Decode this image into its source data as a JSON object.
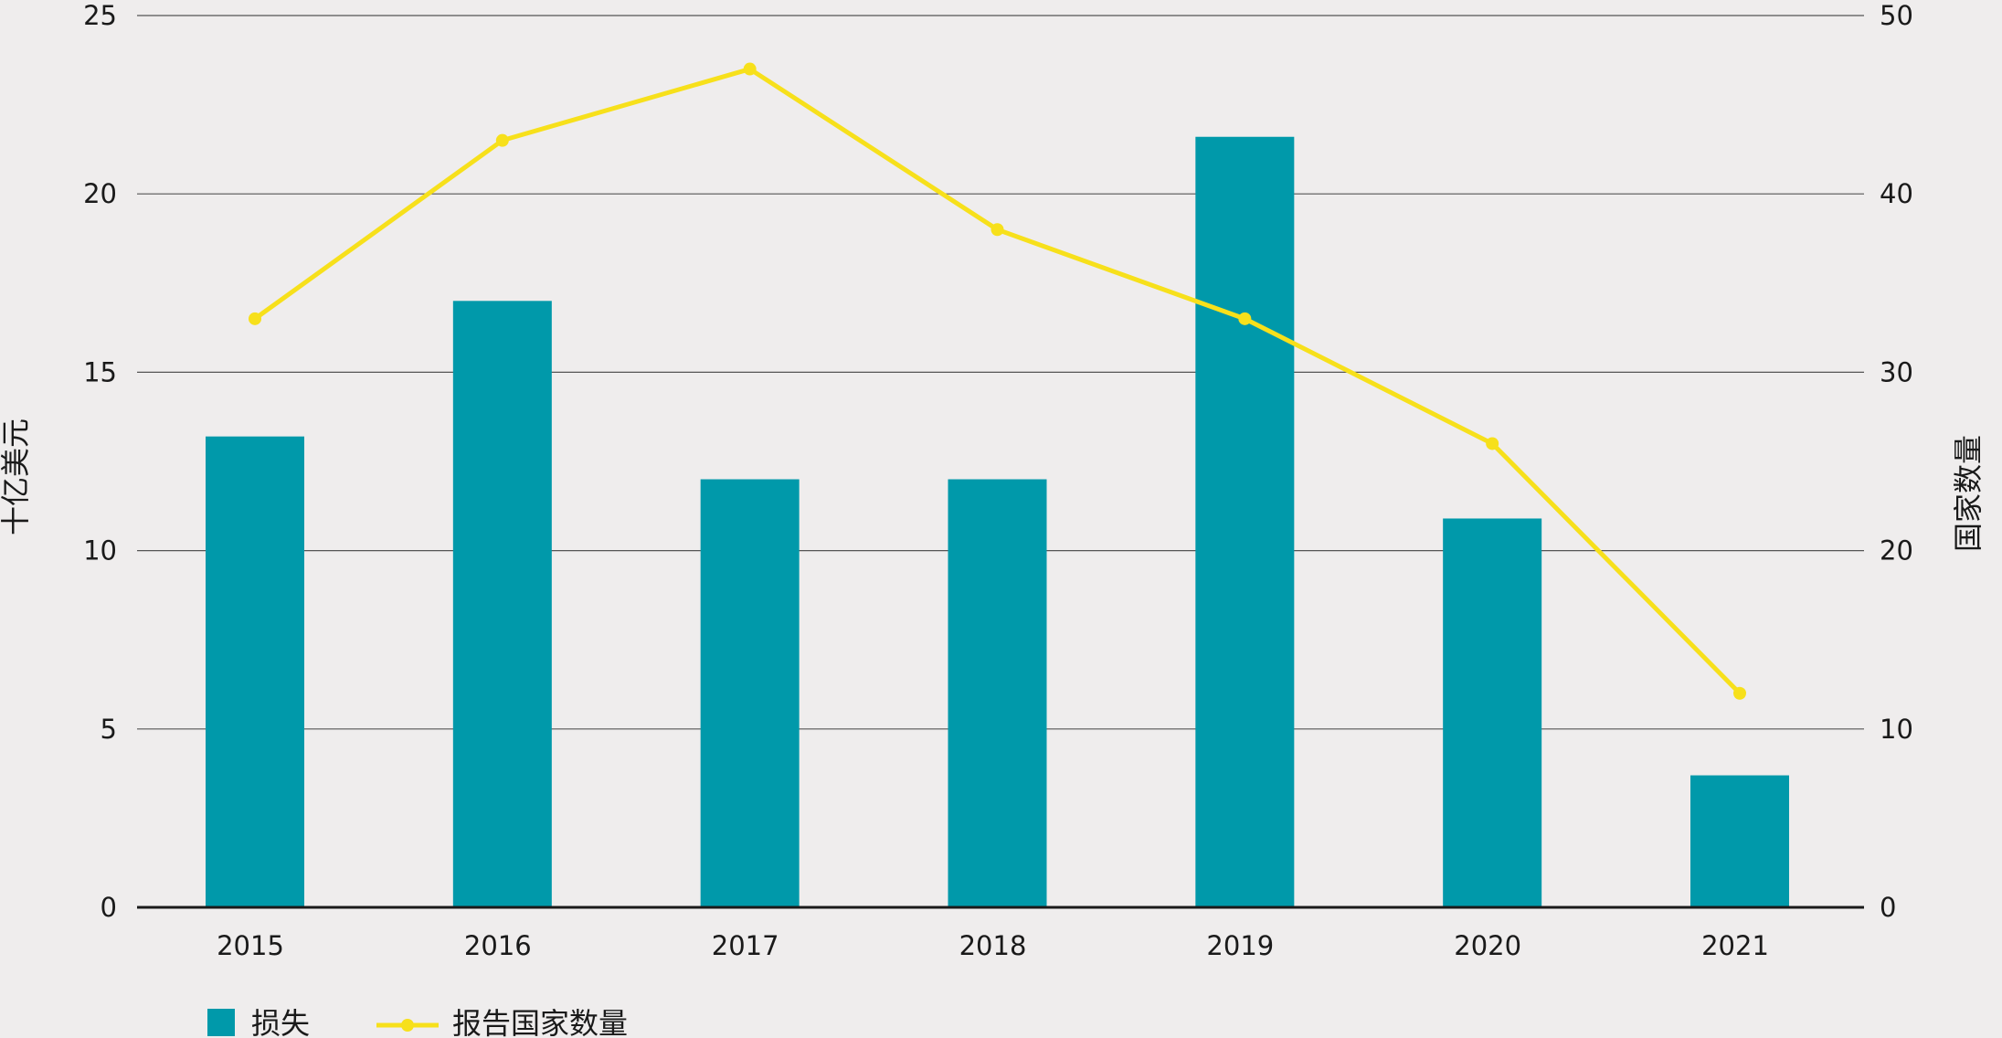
{
  "chart_data": {
    "type": "bar",
    "categories": [
      "2015",
      "2016",
      "2017",
      "2018",
      "2019",
      "2020",
      "2021"
    ],
    "series": [
      {
        "name": "损失",
        "type": "bar",
        "axis": "left",
        "color": "#0099aa",
        "values": [
          13.2,
          17.0,
          12.0,
          12.0,
          21.6,
          10.9,
          3.7
        ]
      },
      {
        "name": "报告国家数量",
        "type": "line",
        "axis": "right",
        "color": "#f7e01b",
        "values": [
          33,
          43,
          47,
          38,
          33,
          26,
          12
        ]
      }
    ],
    "ylabel": "十亿美元",
    "y2label": "国家数量",
    "ylim": [
      0,
      25
    ],
    "y2lim": [
      0,
      50
    ],
    "yticks": [
      "0",
      "5",
      "10",
      "15",
      "20",
      "25"
    ],
    "y2ticks": [
      "0",
      "10",
      "20",
      "30",
      "40",
      "50"
    ],
    "grid": true,
    "legend_position": "bottom-left"
  }
}
